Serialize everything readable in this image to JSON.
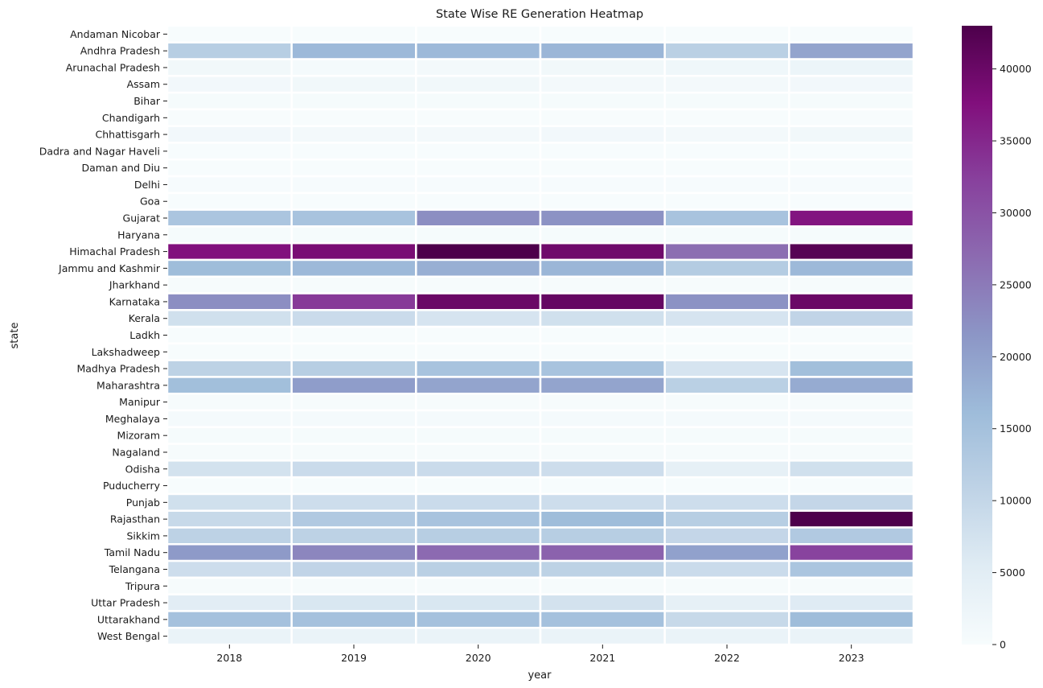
{
  "chart_data": {
    "type": "heatmap",
    "title": "State Wise RE Generation Heatmap",
    "xlabel": "year",
    "ylabel": "state",
    "x": [
      "2018",
      "2019",
      "2020",
      "2021",
      "2022",
      "2023"
    ],
    "y": [
      "Andaman Nicobar",
      "Andhra Pradesh",
      "Arunachal Pradesh",
      "Assam",
      "Bihar",
      "Chandigarh",
      "Chhattisgarh",
      "Dadra and Nagar Haveli",
      "Daman and Diu",
      "Delhi",
      "Goa",
      "Gujarat",
      "Haryana",
      "Himachal Pradesh",
      "Jammu and Kashmir",
      "Jharkhand",
      "Karnataka",
      "Kerala",
      "Ladkh",
      "Lakshadweep",
      "Madhya Pradesh",
      "Maharashtra",
      "Manipur",
      "Meghalaya",
      "Mizoram",
      "Nagaland",
      "Odisha",
      "Puducherry",
      "Punjab",
      "Rajasthan",
      "Sikkim",
      "Tamil Nadu",
      "Telangana",
      "Tripura",
      "Uttar Pradesh",
      "Uttarakhand",
      "West Bengal"
    ],
    "values": [
      [
        100,
        100,
        100,
        100,
        100,
        100
      ],
      [
        12000,
        16500,
        16500,
        17000,
        11500,
        19500
      ],
      [
        1500,
        700,
        1000,
        1500,
        1800,
        2500
      ],
      [
        1200,
        1500,
        1500,
        1000,
        1000,
        1200
      ],
      [
        500,
        500,
        500,
        500,
        500,
        500
      ],
      [
        100,
        100,
        100,
        100,
        100,
        100
      ],
      [
        1200,
        1000,
        1000,
        1200,
        1000,
        1500
      ],
      [
        100,
        100,
        100,
        100,
        100,
        100
      ],
      [
        100,
        100,
        100,
        100,
        100,
        100
      ],
      [
        200,
        200,
        200,
        200,
        200,
        200
      ],
      [
        100,
        100,
        100,
        100,
        100,
        100
      ],
      [
        14000,
        14500,
        22500,
        22000,
        14500,
        37000
      ],
      [
        500,
        500,
        500,
        500,
        500,
        500
      ],
      [
        37500,
        38500,
        43000,
        39500,
        26500,
        42000
      ],
      [
        16000,
        16500,
        18000,
        17000,
        12500,
        16500
      ],
      [
        300,
        300,
        300,
        300,
        300,
        300
      ],
      [
        22500,
        33000,
        40000,
        40500,
        22000,
        40000
      ],
      [
        8000,
        9000,
        7000,
        8000,
        7000,
        10500
      ],
      [
        100,
        100,
        100,
        100,
        100,
        100
      ],
      [
        100,
        100,
        100,
        100,
        100,
        100
      ],
      [
        11000,
        12000,
        14500,
        14500,
        7000,
        15500
      ],
      [
        15500,
        20500,
        19500,
        19500,
        11500,
        18500
      ],
      [
        300,
        300,
        300,
        300,
        300,
        300
      ],
      [
        800,
        800,
        800,
        800,
        800,
        800
      ],
      [
        500,
        500,
        500,
        500,
        500,
        500
      ],
      [
        300,
        300,
        300,
        300,
        300,
        300
      ],
      [
        7500,
        9000,
        9000,
        8500,
        4000,
        8000
      ],
      [
        100,
        100,
        100,
        100,
        100,
        100
      ],
      [
        8000,
        8500,
        9000,
        8500,
        8500,
        10000
      ],
      [
        9500,
        13000,
        14500,
        16000,
        12000,
        43000
      ],
      [
        11000,
        11000,
        12000,
        12000,
        10000,
        13000
      ],
      [
        21000,
        23500,
        27000,
        28000,
        20000,
        32000
      ],
      [
        8500,
        10500,
        11500,
        11000,
        9000,
        14000
      ],
      [
        300,
        300,
        300,
        300,
        300,
        300
      ],
      [
        5000,
        6500,
        6500,
        7500,
        4000,
        5500
      ],
      [
        15000,
        15000,
        15000,
        15000,
        9500,
        16000
      ],
      [
        3000,
        3000,
        3000,
        3000,
        3000,
        3000
      ]
    ],
    "zlim": [
      0,
      43000
    ],
    "colormap": "BuPu",
    "colorbar_ticks": [
      "0",
      "5000",
      "10000",
      "15000",
      "20000",
      "25000",
      "30000",
      "35000",
      "40000"
    ],
    "colorbar_tick_values": [
      0,
      5000,
      10000,
      15000,
      20000,
      25000,
      30000,
      35000,
      40000
    ],
    "grid": false,
    "cell_separator_color": "#ffffff"
  }
}
